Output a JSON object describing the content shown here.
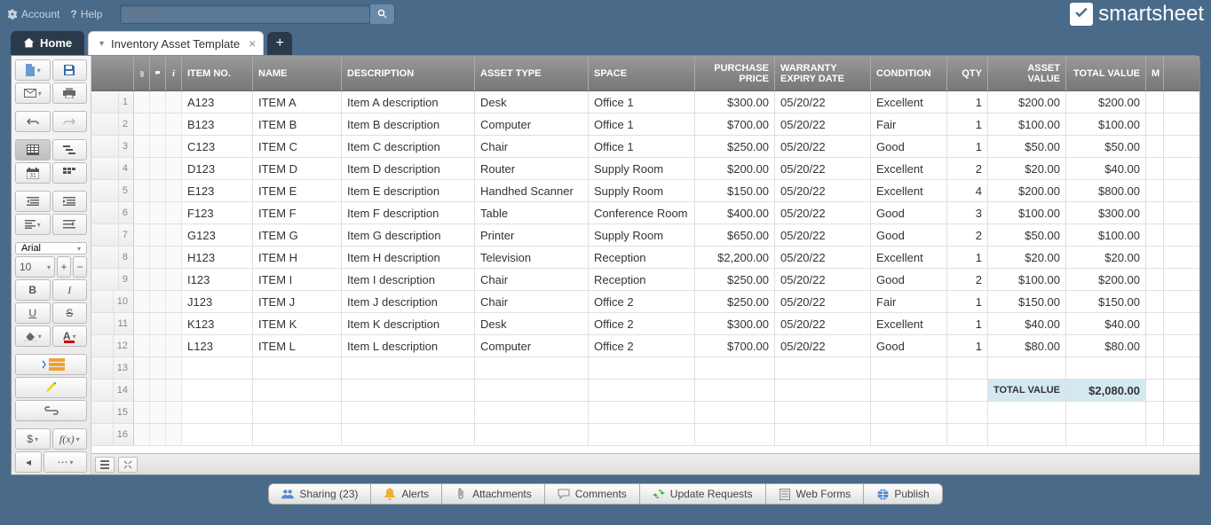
{
  "topbar": {
    "account": "Account",
    "help": "Help",
    "search_placeholder": "Search..."
  },
  "logo": {
    "text": "smartsheet"
  },
  "tabs": {
    "home": "Home",
    "sheet": "Inventory Asset Template"
  },
  "toolbar": {
    "font": "Arial",
    "fontsize": "10"
  },
  "columns": {
    "itemno": "ITEM NO.",
    "name": "NAME",
    "desc": "DESCRIPTION",
    "type": "ASSET TYPE",
    "space": "SPACE",
    "price": "PURCHASE PRICE",
    "warranty": "WARRANTY EXPIRY DATE",
    "cond": "CONDITION",
    "qty": "QTY",
    "aval": "ASSET VALUE",
    "tval": "TOTAL VALUE",
    "m": "M"
  },
  "rows": [
    {
      "n": "1",
      "itemno": "A123",
      "name": "ITEM A",
      "desc": "Item A description",
      "type": "Desk",
      "space": "Office 1",
      "price": "$300.00",
      "warranty": "05/20/22",
      "cond": "Excellent",
      "qty": "1",
      "aval": "$200.00",
      "tval": "$200.00"
    },
    {
      "n": "2",
      "itemno": "B123",
      "name": "ITEM B",
      "desc": "Item B description",
      "type": "Computer",
      "space": "Office 1",
      "price": "$700.00",
      "warranty": "05/20/22",
      "cond": "Fair",
      "qty": "1",
      "aval": "$100.00",
      "tval": "$100.00"
    },
    {
      "n": "3",
      "itemno": "C123",
      "name": "ITEM C",
      "desc": "Item C description",
      "type": "Chair",
      "space": "Office 1",
      "price": "$250.00",
      "warranty": "05/20/22",
      "cond": "Good",
      "qty": "1",
      "aval": "$50.00",
      "tval": "$50.00"
    },
    {
      "n": "4",
      "itemno": "D123",
      "name": "ITEM D",
      "desc": "Item D description",
      "type": "Router",
      "space": "Supply Room",
      "price": "$200.00",
      "warranty": "05/20/22",
      "cond": "Excellent",
      "qty": "2",
      "aval": "$20.00",
      "tval": "$40.00"
    },
    {
      "n": "5",
      "itemno": "E123",
      "name": "ITEM E",
      "desc": "Item E description",
      "type": "Handhed Scanner",
      "space": "Supply Room",
      "price": "$150.00",
      "warranty": "05/20/22",
      "cond": "Excellent",
      "qty": "4",
      "aval": "$200.00",
      "tval": "$800.00"
    },
    {
      "n": "6",
      "itemno": "F123",
      "name": "ITEM F",
      "desc": "Item F description",
      "type": "Table",
      "space": "Conference Room",
      "price": "$400.00",
      "warranty": "05/20/22",
      "cond": "Good",
      "qty": "3",
      "aval": "$100.00",
      "tval": "$300.00"
    },
    {
      "n": "7",
      "itemno": "G123",
      "name": "ITEM G",
      "desc": "Item G description",
      "type": "Printer",
      "space": "Supply Room",
      "price": "$650.00",
      "warranty": "05/20/22",
      "cond": "Good",
      "qty": "2",
      "aval": "$50.00",
      "tval": "$100.00"
    },
    {
      "n": "8",
      "itemno": "H123",
      "name": "ITEM H",
      "desc": "Item H description",
      "type": "Television",
      "space": "Reception",
      "price": "$2,200.00",
      "warranty": "05/20/22",
      "cond": "Excellent",
      "qty": "1",
      "aval": "$20.00",
      "tval": "$20.00"
    },
    {
      "n": "9",
      "itemno": "I123",
      "name": "ITEM I",
      "desc": "Item I description",
      "type": "Chair",
      "space": "Reception",
      "price": "$250.00",
      "warranty": "05/20/22",
      "cond": "Good",
      "qty": "2",
      "aval": "$100.00",
      "tval": "$200.00"
    },
    {
      "n": "10",
      "itemno": "J123",
      "name": "ITEM J",
      "desc": "Item J description",
      "type": "Chair",
      "space": "Office 2",
      "price": "$250.00",
      "warranty": "05/20/22",
      "cond": "Fair",
      "qty": "1",
      "aval": "$150.00",
      "tval": "$150.00"
    },
    {
      "n": "11",
      "itemno": "K123",
      "name": "ITEM K",
      "desc": "Item K description",
      "type": "Desk",
      "space": "Office 2",
      "price": "$300.00",
      "warranty": "05/20/22",
      "cond": "Excellent",
      "qty": "1",
      "aval": "$40.00",
      "tval": "$40.00"
    },
    {
      "n": "12",
      "itemno": "L123",
      "name": "ITEM L",
      "desc": "Item L description",
      "type": "Computer",
      "space": "Office 2",
      "price": "$700.00",
      "warranty": "05/20/22",
      "cond": "Good",
      "qty": "1",
      "aval": "$80.00",
      "tval": "$80.00"
    }
  ],
  "empty_rows": [
    "13",
    "14",
    "15",
    "16"
  ],
  "total": {
    "label": "TOTAL VALUE",
    "value": "$2,080.00"
  },
  "bottombar": {
    "sharing": "Sharing  (23)",
    "alerts": "Alerts",
    "attachments": "Attachments",
    "comments": "Comments",
    "updates": "Update Requests",
    "webforms": "Web Forms",
    "publish": "Publish"
  },
  "colors": {
    "header_bg": "#4a6a8a",
    "grid_header": "#888888",
    "total_bg": "#d4e8f0"
  }
}
